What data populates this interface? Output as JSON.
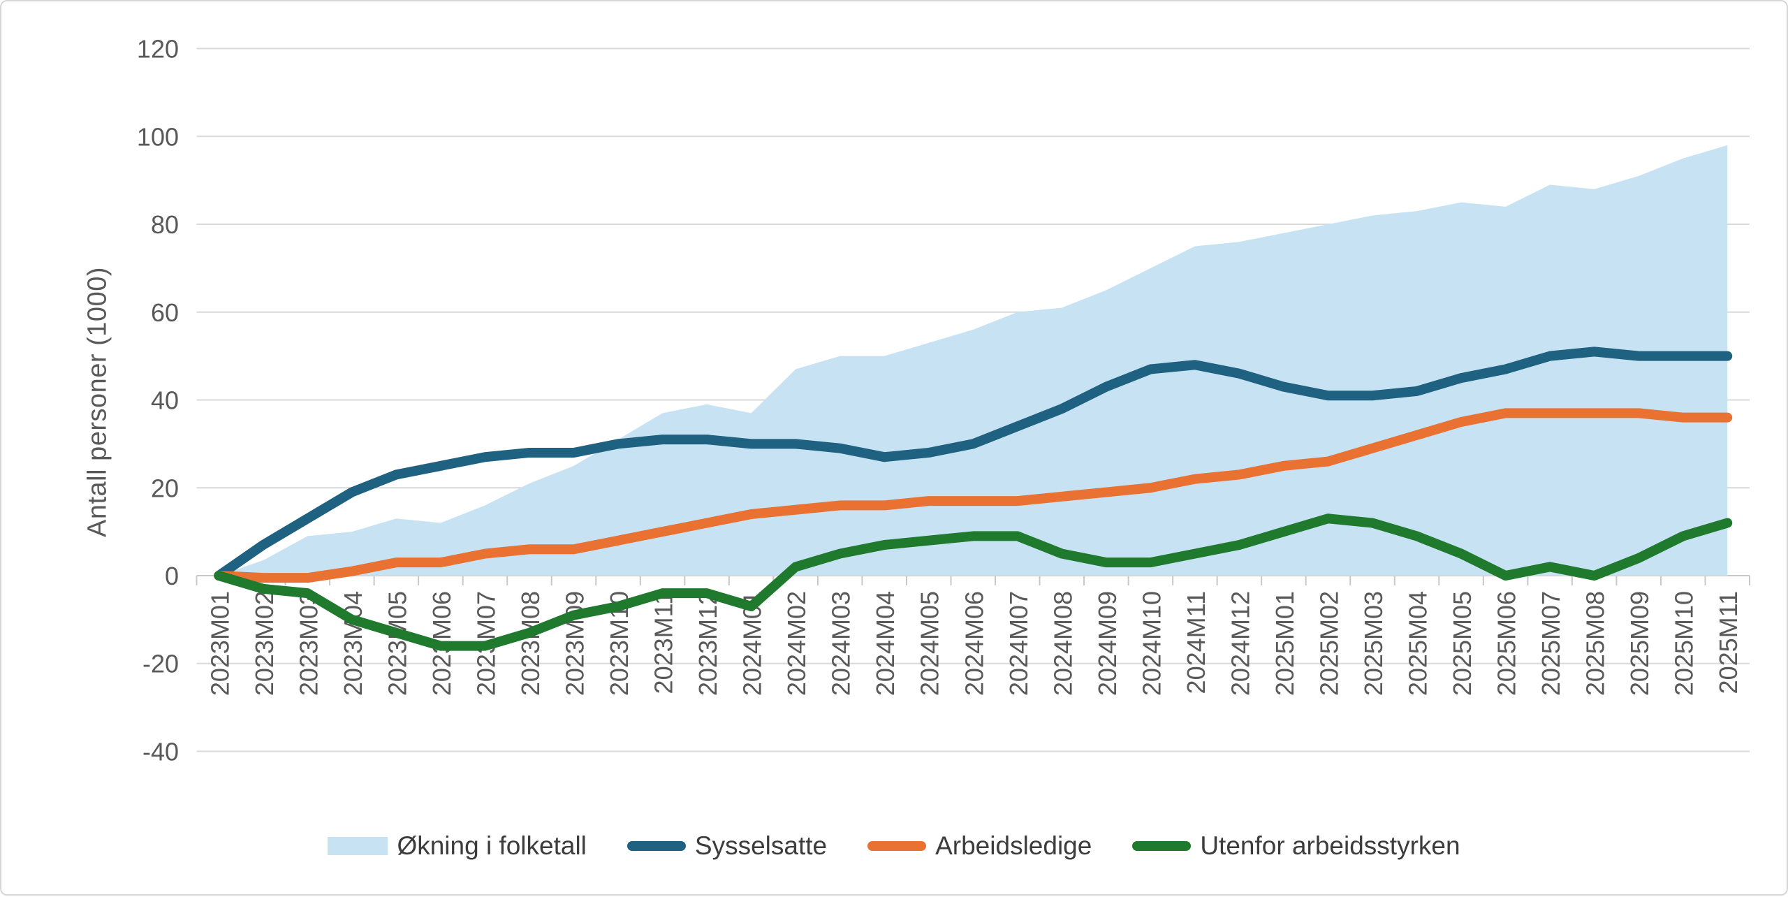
{
  "chart_data": {
    "type": "area",
    "title": "",
    "xlabel": "",
    "ylabel": "Antall personer (1000)",
    "ylim": [
      -40,
      120
    ],
    "ytick_step": 20,
    "yticks": [
      120,
      100,
      80,
      60,
      40,
      20,
      0,
      -20,
      -40
    ],
    "grid": true,
    "legend_position": "bottom",
    "categories": [
      "2023M01",
      "2023M02",
      "2023M03",
      "2023M04",
      "2023M05",
      "2023M06",
      "2023M07",
      "2023M08",
      "2023M09",
      "2023M10",
      "2023M11",
      "2023M12",
      "2024M01",
      "2024M02",
      "2024M03",
      "2024M04",
      "2024M05",
      "2024M06",
      "2024M07",
      "2024M08",
      "2024M09",
      "2024M10",
      "2024M11",
      "2024M12",
      "2025M01",
      "2025M02",
      "2025M03",
      "2025M04",
      "2025M05",
      "2025M06",
      "2025M07",
      "2025M08",
      "2025M09",
      "2025M10",
      "2025M11"
    ],
    "series": [
      {
        "name": "Økning i folketall",
        "type": "area",
        "color": "#C7E2F3",
        "values": [
          0,
          3.5,
          9,
          10,
          13,
          12,
          16,
          21,
          25,
          31,
          37,
          39,
          37,
          47,
          50,
          50,
          53,
          56,
          60,
          61,
          65,
          70,
          75,
          76,
          78,
          80,
          82,
          83,
          85,
          84,
          89,
          88,
          91,
          95,
          98
        ]
      },
      {
        "name": "Sysselsatte",
        "type": "line",
        "color": "#1F6180",
        "values": [
          0,
          7,
          13,
          19,
          23,
          25,
          27,
          28,
          28,
          30,
          31,
          31,
          30,
          30,
          29,
          27,
          28,
          30,
          34,
          38,
          43,
          47,
          48,
          46,
          43,
          41,
          41,
          42,
          45,
          47,
          50,
          51,
          50,
          50,
          50
        ]
      },
      {
        "name": "Arbeidsledige",
        "type": "line",
        "color": "#E97132",
        "values": [
          0,
          -0.5,
          -0.5,
          1,
          3,
          3,
          5,
          6,
          6,
          8,
          10,
          12,
          14,
          15,
          16,
          16,
          17,
          17,
          17,
          18,
          19,
          20,
          22,
          23,
          25,
          26,
          29,
          32,
          35,
          37,
          37,
          37,
          37,
          36,
          36
        ]
      },
      {
        "name": "Utenfor arbeidsstyrken",
        "type": "line",
        "color": "#1F7A2E",
        "values": [
          0,
          -3,
          -4,
          -10,
          -13,
          -16,
          -16,
          -13,
          -9,
          -7,
          -4,
          -4,
          -7,
          2,
          5,
          7,
          8,
          9,
          9,
          5,
          3,
          3,
          5,
          7,
          10,
          13,
          12,
          9,
          5,
          0,
          2,
          0,
          4,
          9,
          12
        ]
      }
    ],
    "colors": {
      "gridline": "#D9D9D9",
      "axis_line": "#C8C8C8",
      "tick_label": "#595959",
      "legend_text": "#3C3C3C",
      "background": "#FFFFFF"
    }
  }
}
